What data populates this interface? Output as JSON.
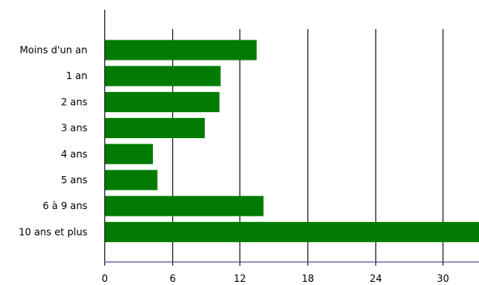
{
  "chart_data": {
    "type": "bar",
    "orientation": "horizontal",
    "categories": [
      "Moins d'un an",
      "1 an",
      "2 ans",
      "3 ans",
      "4 ans",
      "5 ans",
      "6 à 9 ans",
      "10 ans et plus"
    ],
    "values": [
      13.5,
      10.3,
      10.2,
      8.9,
      4.3,
      4.7,
      14.1,
      33.5
    ],
    "xlim": [
      0,
      33.2
    ],
    "xticks": [
      0,
      6,
      12,
      18,
      24,
      30
    ],
    "grid": "vertical",
    "bar_color": "#007b00",
    "axis_color": "#3b3b8a",
    "grid_color": "#000000"
  }
}
